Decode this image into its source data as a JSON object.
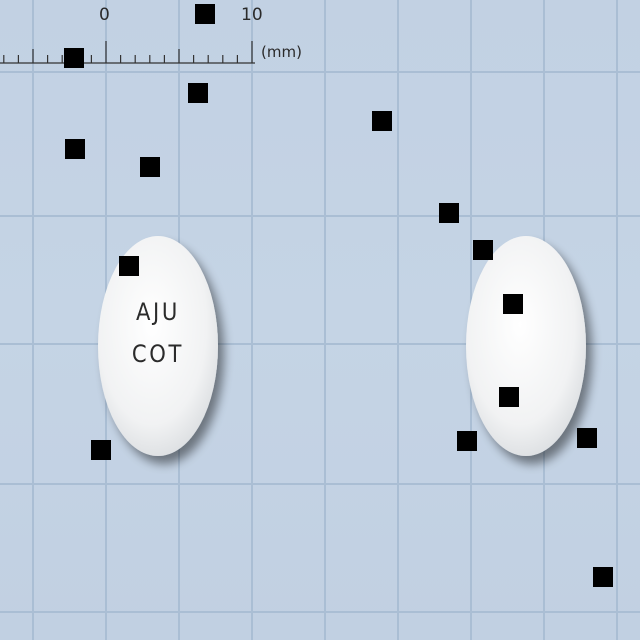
{
  "ruler": {
    "tick_labels": [
      "0",
      "10"
    ],
    "unit": "(mm)"
  },
  "pills": [
    {
      "name": "pill-front",
      "imprint_line1": "AJU",
      "imprint_line2": "COT"
    },
    {
      "name": "pill-back",
      "imprint_line1": "",
      "imprint_line2": ""
    }
  ],
  "colors": {
    "background": "#c3d2e3",
    "grid": "#a9bdd3",
    "pill": "#f4f5f6",
    "marker": "#000000"
  }
}
